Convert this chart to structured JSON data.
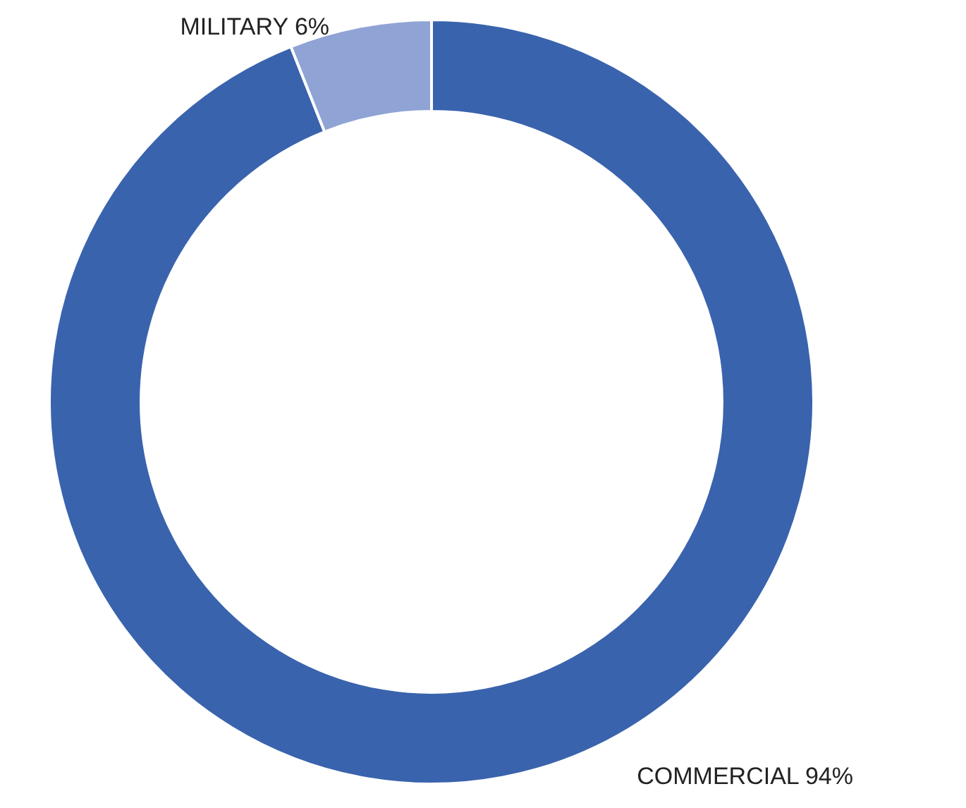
{
  "chart_data": {
    "type": "donut",
    "categories": [
      "COMMERCIAL",
      "MILITARY"
    ],
    "values": [
      94,
      6
    ],
    "colors": [
      "#3a63ad",
      "#8fa3d5"
    ],
    "value_labels": [
      "94%",
      "6%"
    ],
    "legend": false
  }
}
